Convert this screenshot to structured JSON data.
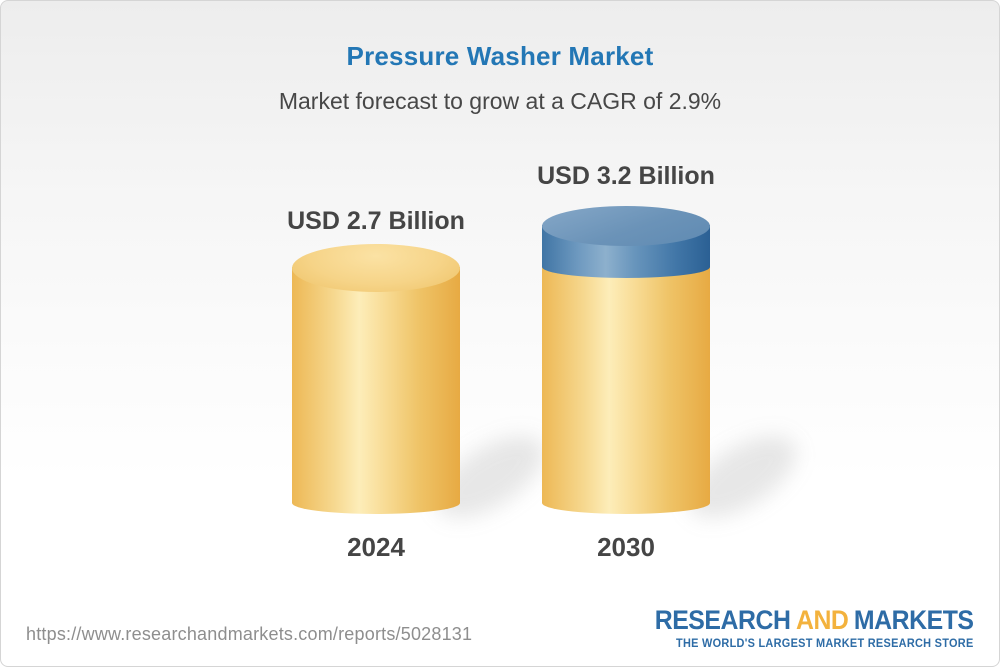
{
  "header": {
    "title": "Pressure Washer Market",
    "subtitle": "Market forecast to grow at a CAGR of 2.9%"
  },
  "chart_data": {
    "type": "bar",
    "bar_style": "3d-cylinder",
    "categories": [
      "2024",
      "2030"
    ],
    "values": [
      2.7,
      3.2
    ],
    "value_unit": "USD Billion",
    "value_labels": [
      "USD 2.7 Billion",
      "USD 3.2 Billion"
    ],
    "title": "Pressure Washer Market",
    "subtitle": "Market forecast to grow at a CAGR of 2.9%",
    "cagr_percent": 2.9,
    "axes": "none",
    "gridlines": false,
    "legend": "none",
    "colors": {
      "base_segment": "#f2c86f",
      "growth_segment": "#6190b7",
      "title_text": "#2377b5",
      "label_text": "#454545"
    },
    "notes": "2030 bar is yellow with a blue top segment representing growth above the 2024 value"
  },
  "bars": [
    {
      "year": "2024",
      "value_label": "USD 2.7 Billion"
    },
    {
      "year": "2030",
      "value_label": "USD 3.2 Billion"
    }
  ],
  "footer": {
    "url": "https://www.researchandmarkets.com/reports/5028131",
    "logo": {
      "research": "RESEARCH",
      "and": "AND",
      "markets": "MARKETS",
      "tagline": "THE WORLD'S LARGEST MARKET RESEARCH STORE",
      "blue": "#2e6ca6",
      "yellow": "#f3b23d"
    }
  }
}
